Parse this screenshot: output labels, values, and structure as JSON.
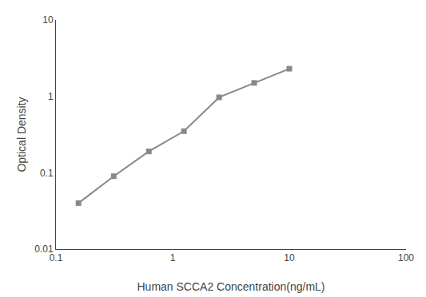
{
  "chart_data": {
    "type": "line",
    "x": [
      0.156,
      0.313,
      0.625,
      1.25,
      2.5,
      5.0,
      10.0
    ],
    "values": [
      0.04,
      0.09,
      0.19,
      0.35,
      0.97,
      1.5,
      2.3
    ],
    "xlabel": "Human SCCA2 Concentration(ng/mL)",
    "ylabel": "Optical Density",
    "xlim": [
      0.1,
      100
    ],
    "ylim": [
      0.01,
      10
    ],
    "xticks": [
      0.1,
      1,
      10,
      100
    ],
    "yticks": [
      0.01,
      0.1,
      1,
      10
    ],
    "log": true,
    "grid": false,
    "color": "#888888",
    "marker": "square"
  }
}
